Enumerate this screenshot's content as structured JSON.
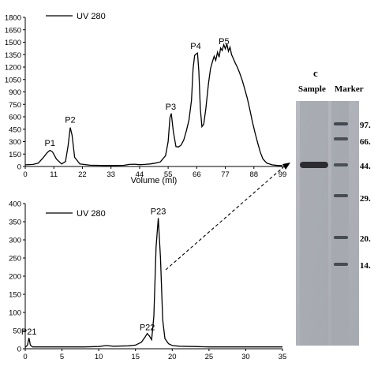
{
  "chart_data": [
    {
      "type": "line",
      "legend": "UV 280",
      "xlabel": "Volume (ml)",
      "ylabel": "",
      "xticks": [
        "0",
        "11",
        "22",
        "33",
        "44",
        "55",
        "66",
        "77",
        "88",
        "99"
      ],
      "xlim": [
        0,
        99
      ],
      "yticks": [
        "0",
        "150",
        "300",
        "450",
        "600",
        "750",
        "900",
        "1050",
        "1200",
        "1350",
        "1500",
        "1650",
        "1800"
      ],
      "ylim": [
        0,
        1800
      ],
      "peaks": [
        {
          "label": "P1",
          "x": 9.5,
          "y": 200
        },
        {
          "label": "P2",
          "x": 17.3,
          "y": 480
        },
        {
          "label": "P3",
          "x": 56,
          "y": 640
        },
        {
          "label": "P4",
          "x": 65.6,
          "y": 1370
        },
        {
          "label": "P5",
          "x": 76.5,
          "y": 1430
        }
      ],
      "series": [
        {
          "x": [
            0,
            3,
            5,
            7,
            8.5,
            9.5,
            10.5,
            12,
            14,
            15.5,
            16.5,
            17.3,
            18,
            19,
            21,
            25,
            30,
            35,
            38,
            40,
            42,
            44,
            46,
            48,
            50,
            52,
            54,
            55,
            55.7,
            56.2,
            57,
            58,
            59,
            60,
            61,
            62,
            63,
            64,
            64.6,
            65.2,
            65.8,
            66.3,
            66.8,
            67.4,
            68,
            68.7,
            69.5,
            70.5,
            71.3,
            72,
            72.7,
            73.3,
            74,
            74.6,
            75.2,
            75.8,
            76.4,
            77,
            77.6,
            78.2,
            78.8,
            79.4,
            80,
            80.8,
            81.6,
            82.5,
            83.5,
            84.5,
            85.5,
            86.5,
            87.5,
            88.5,
            89.5,
            90.5,
            91.5,
            93,
            95,
            97,
            99
          ],
          "y": [
            20,
            25,
            40,
            110,
            170,
            195,
            175,
            90,
            30,
            60,
            250,
            470,
            380,
            110,
            30,
            15,
            12,
            12,
            14,
            25,
            28,
            22,
            25,
            30,
            40,
            55,
            130,
            300,
            590,
            640,
            420,
            240,
            235,
            260,
            320,
            430,
            560,
            800,
            1180,
            1340,
            1360,
            1370,
            1150,
            700,
            480,
            510,
            700,
            1000,
            1180,
            1260,
            1330,
            1280,
            1380,
            1320,
            1430,
            1400,
            1470,
            1420,
            1480,
            1390,
            1440,
            1350,
            1310,
            1250,
            1200,
            1130,
            1040,
            930,
            820,
            680,
            530,
            400,
            280,
            170,
            90,
            40,
            20,
            12,
            10
          ]
        }
      ]
    },
    {
      "type": "line",
      "legend": "UV 280",
      "xlabel": "",
      "ylabel": "",
      "xticks": [
        "0",
        "5",
        "10",
        "15",
        "20",
        "25",
        "30",
        "35"
      ],
      "xlim": [
        0,
        35
      ],
      "yticks": [
        "0",
        "50",
        "100",
        "150",
        "200",
        "250",
        "300",
        "350",
        "400"
      ],
      "ylim": [
        0,
        400
      ],
      "peaks": [
        {
          "label": "P21",
          "x": 0.5,
          "y": 28
        },
        {
          "label": "P22",
          "x": 16.6,
          "y": 40
        },
        {
          "label": "P23",
          "x": 18.1,
          "y": 360
        }
      ],
      "series": [
        {
          "x": [
            0,
            0.3,
            0.5,
            0.7,
            1,
            2,
            4,
            6,
            8,
            10,
            11,
            12,
            14,
            15,
            15.8,
            16.3,
            16.6,
            16.9,
            17.2,
            17.5,
            17.8,
            18.1,
            18.4,
            18.7,
            19,
            19.5,
            20,
            21,
            23,
            25,
            28,
            30,
            33,
            35
          ],
          "y": [
            4,
            10,
            30,
            10,
            5,
            5,
            5,
            5,
            5,
            6,
            9,
            7,
            8,
            10,
            18,
            32,
            42,
            35,
            25,
            90,
            280,
            360,
            250,
            80,
            28,
            14,
            9,
            7,
            6,
            5,
            5,
            5,
            5,
            5
          ]
        }
      ]
    },
    {
      "type": "gel",
      "panel_letter": "c",
      "lanes": [
        "Sample",
        "Marker"
      ],
      "marker_labels": [
        "97.",
        "66.",
        "44.",
        "29.",
        "20.",
        "14."
      ],
      "sample_band_label": "44."
    }
  ]
}
